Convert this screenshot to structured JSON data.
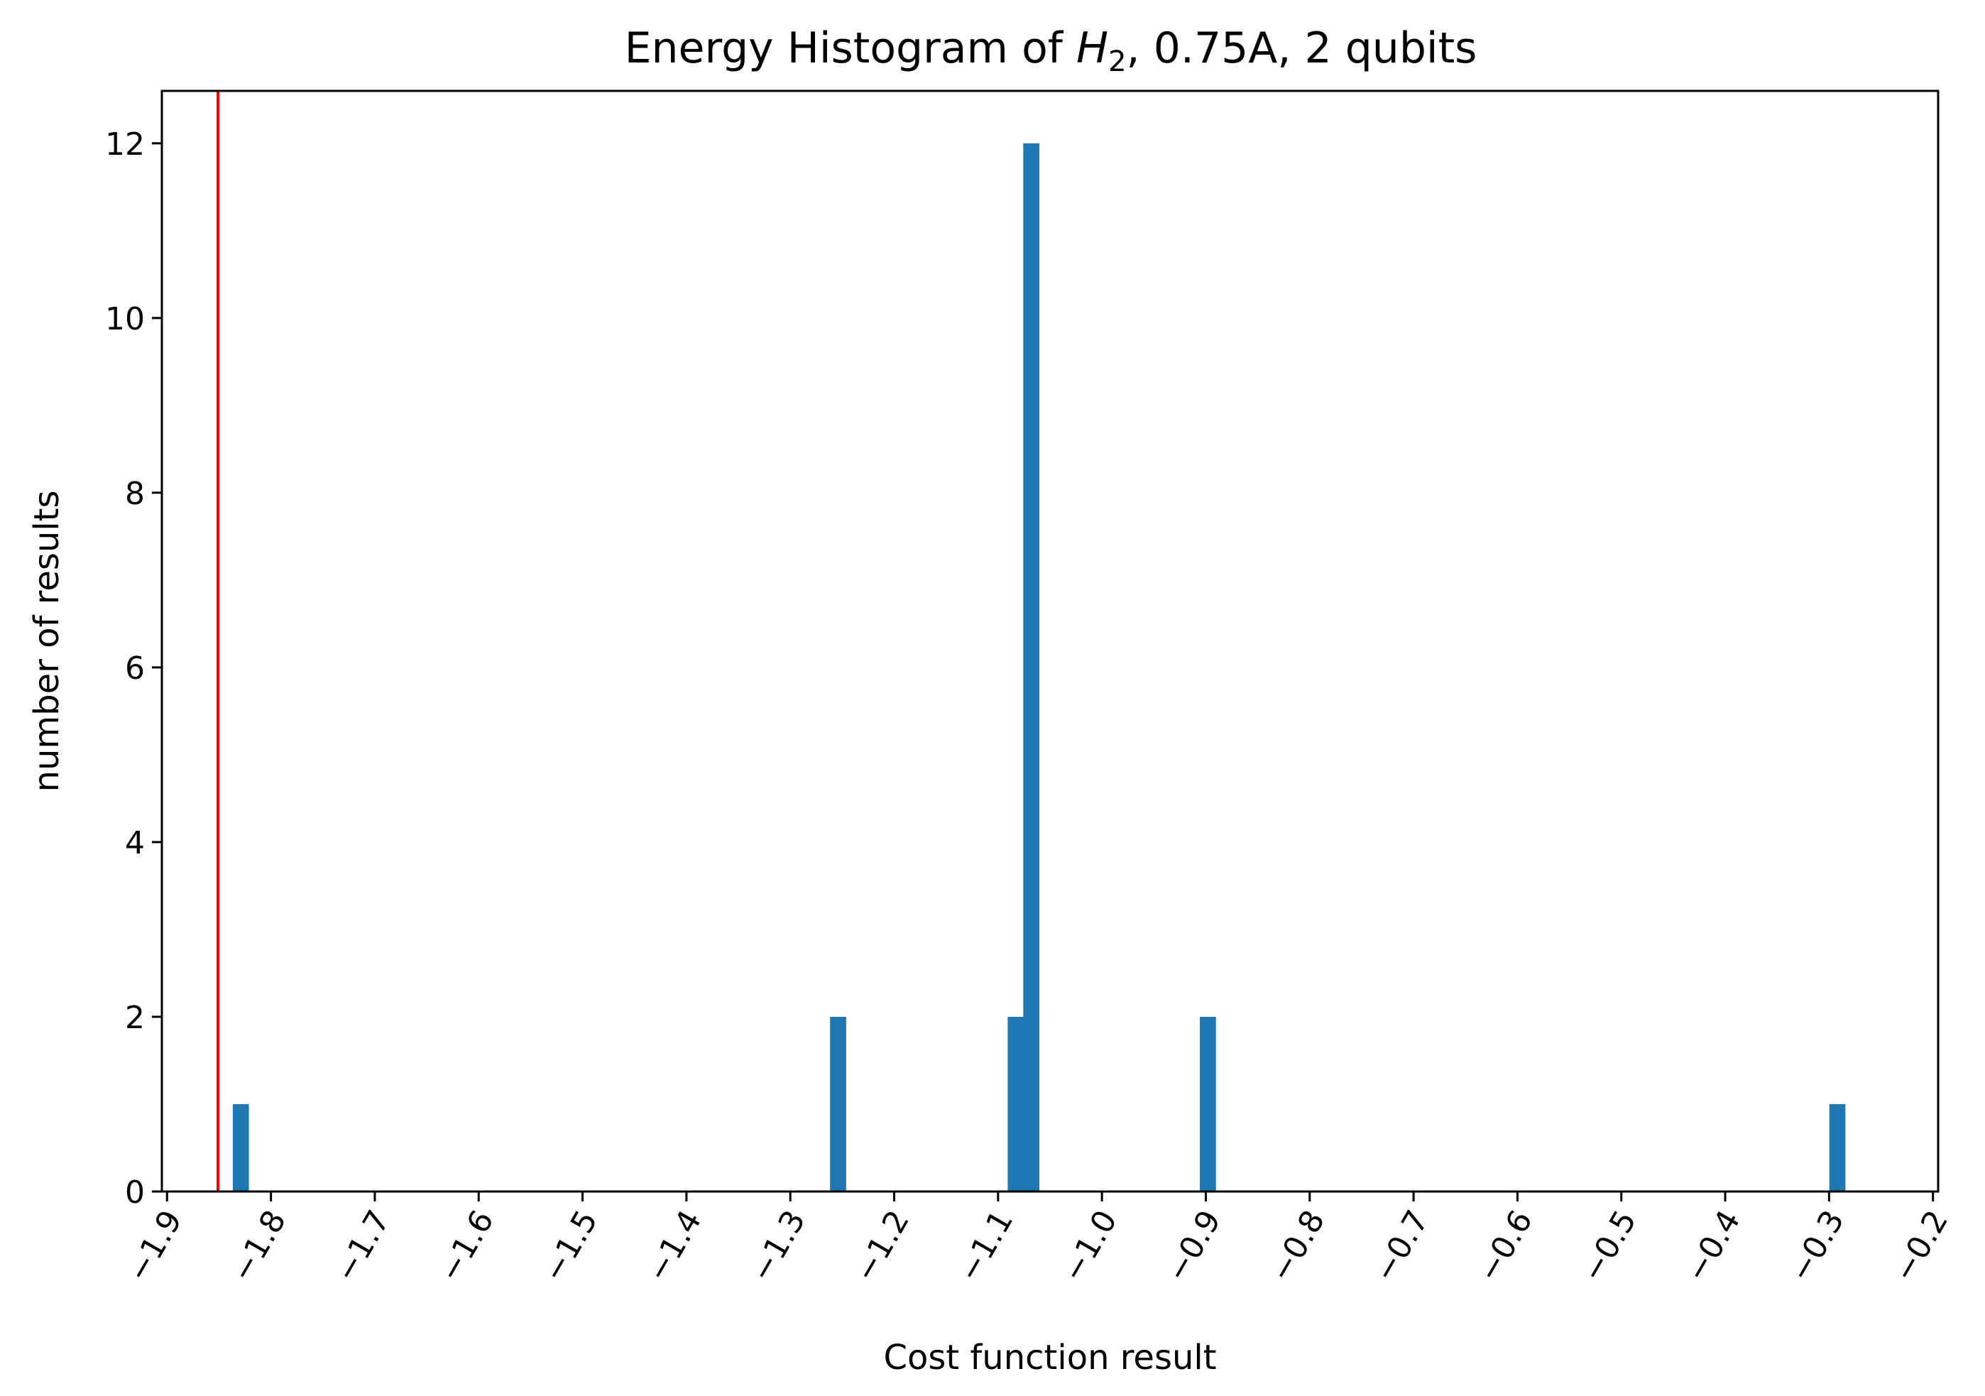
{
  "chart_data": {
    "type": "bar",
    "title": {
      "prefix": "Energy Histogram of ",
      "symbol": "H",
      "subscript": "2",
      "suffix": ", 0.75A, 2 qubits"
    },
    "xlabel": "Cost function result",
    "ylabel": "number of results",
    "xlim": [
      -1.905,
      -0.195
    ],
    "ylim": [
      0,
      12.6
    ],
    "x_ticks": [
      -1.9,
      -1.8,
      -1.7,
      -1.6,
      -1.5,
      -1.4,
      -1.3,
      -1.2,
      -1.1,
      -1.0,
      -0.9,
      -0.8,
      -0.7,
      -0.6,
      -0.5,
      -0.4,
      -0.3,
      -0.2
    ],
    "x_tick_labels": [
      "−1.9",
      "−1.8",
      "−1.7",
      "−1.6",
      "−1.5",
      "−1.4",
      "−1.3",
      "−1.2",
      "−1.1",
      "−1.0",
      "−0.9",
      "−0.8",
      "−0.7",
      "−0.6",
      "−0.5",
      "−0.4",
      "−0.3",
      "−0.2"
    ],
    "y_ticks": [
      0,
      2,
      4,
      6,
      8,
      10,
      12
    ],
    "y_tick_labels": [
      "0",
      "2",
      "4",
      "6",
      "8",
      "10",
      "12"
    ],
    "bin_width": 0.0155,
    "bars": [
      {
        "x": -1.829,
        "count": 1
      },
      {
        "x": -1.254,
        "count": 2
      },
      {
        "x": -1.083,
        "count": 2
      },
      {
        "x": -1.068,
        "count": 12
      },
      {
        "x": -0.898,
        "count": 2
      },
      {
        "x": -0.292,
        "count": 1
      }
    ],
    "reference_line": {
      "x": -1.851,
      "color": "#ff0000"
    },
    "bar_color": "#1f77b4",
    "grid": false,
    "legend": "none"
  }
}
